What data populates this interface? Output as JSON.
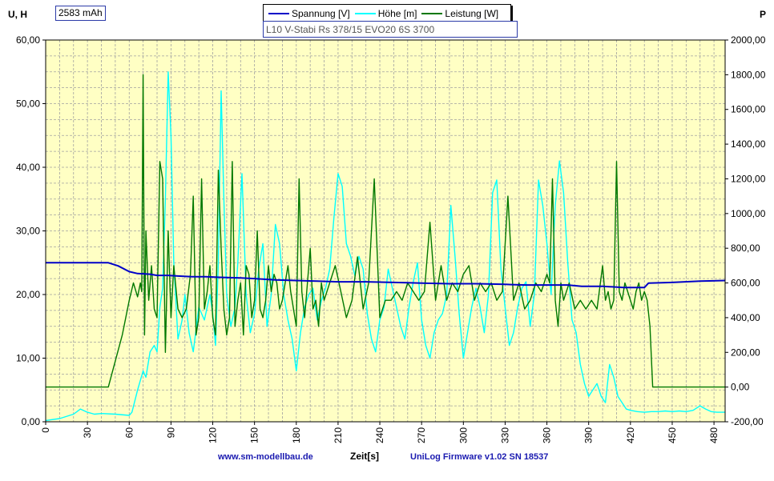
{
  "chart_data": {
    "type": "line",
    "title": "L10 V-Stabi Rs 378/15 EVO20 6S 3700",
    "capacity_label": "2583 mAh",
    "xlabel": "Zeit[s]",
    "ylabel_left": "U, H",
    "ylabel_right": "P",
    "xlim": [
      0,
      488
    ],
    "ylim_left": [
      0,
      60
    ],
    "ylim_right": [
      -200,
      2000
    ],
    "x_ticks": [
      "0",
      "30",
      "60",
      "90",
      "120",
      "150",
      "180",
      "210",
      "240",
      "270",
      "300",
      "330",
      "360",
      "390",
      "420",
      "450",
      "480"
    ],
    "y_left_ticks": [
      "0,00",
      "10,00",
      "20,00",
      "30,00",
      "40,00",
      "50,00",
      "60,00"
    ],
    "y_right_ticks": [
      "-200,00",
      "0,00",
      "200,00",
      "400,00",
      "600,00",
      "800,00",
      "1000,00",
      "1200,00",
      "1400,00",
      "1600,00",
      "1800,00",
      "2000,00"
    ],
    "grid": true,
    "legend_position": "top-center",
    "series": [
      {
        "name": "Spannung [V]",
        "axis": "left",
        "color": "#0000c8",
        "x": [
          0,
          45,
          52,
          60,
          66,
          75,
          80,
          88,
          95,
          105,
          115,
          125,
          140,
          150,
          165,
          180,
          195,
          210,
          230,
          250,
          270,
          290,
          310,
          330,
          345,
          360,
          375,
          385,
          400,
          415,
          430,
          433,
          450,
          470,
          488
        ],
        "y": [
          25.0,
          25.0,
          24.5,
          23.6,
          23.3,
          23.2,
          23.0,
          23.0,
          22.9,
          22.8,
          22.8,
          22.7,
          22.6,
          22.5,
          22.3,
          22.2,
          22.1,
          22.0,
          22.0,
          21.9,
          21.8,
          21.7,
          21.7,
          21.6,
          21.5,
          21.5,
          21.5,
          21.3,
          21.3,
          21.1,
          21.1,
          21.8,
          21.9,
          22.1,
          22.2
        ]
      },
      {
        "name": "Höhe [m]",
        "axis": "left",
        "color": "#00ffff",
        "x": [
          0,
          10,
          20,
          25,
          30,
          35,
          40,
          50,
          60,
          62,
          66,
          70,
          72,
          75,
          78,
          80,
          82,
          84,
          86,
          88,
          90,
          92,
          95,
          98,
          100,
          103,
          106,
          110,
          114,
          118,
          120,
          122,
          124,
          126,
          128,
          130,
          133,
          136,
          138,
          141,
          144,
          147,
          150,
          153,
          156,
          159,
          162,
          165,
          168,
          171,
          174,
          177,
          180,
          183,
          186,
          189,
          192,
          195,
          198,
          201,
          204,
          207,
          210,
          213,
          216,
          219,
          222,
          225,
          228,
          231,
          234,
          237,
          240,
          243,
          246,
          249,
          252,
          255,
          258,
          261,
          264,
          267,
          270,
          273,
          276,
          279,
          282,
          285,
          288,
          291,
          294,
          297,
          300,
          303,
          306,
          309,
          312,
          315,
          318,
          321,
          324,
          327,
          330,
          333,
          336,
          339,
          342,
          345,
          348,
          351,
          354,
          357,
          360,
          363,
          366,
          369,
          372,
          375,
          378,
          381,
          384,
          387,
          390,
          393,
          396,
          399,
          402,
          405,
          408,
          411,
          414,
          417,
          420,
          425,
          430,
          435,
          440,
          445,
          450,
          455,
          460,
          465,
          470,
          474,
          478,
          482,
          488
        ],
        "y": [
          0.2,
          0.5,
          1.2,
          2.0,
          1.5,
          1.2,
          1.3,
          1.2,
          1.0,
          1.5,
          5.0,
          8.0,
          7.0,
          11.0,
          12.0,
          11.0,
          18.0,
          21.0,
          35.0,
          55.0,
          45.0,
          25.0,
          13.0,
          16.0,
          20.0,
          14.0,
          11.0,
          18.0,
          16.0,
          20.0,
          17.0,
          12.0,
          25.0,
          52.0,
          35.0,
          20.0,
          15.0,
          18.0,
          25.0,
          39.0,
          20.0,
          14.0,
          17.0,
          24.0,
          28.0,
          15.0,
          20.0,
          31.0,
          28.0,
          20.0,
          16.0,
          13.0,
          8.0,
          14.0,
          18.0,
          20.0,
          21.0,
          16.0,
          19.0,
          21.0,
          24.0,
          32.0,
          39.0,
          37.0,
          28.0,
          26.0,
          23.0,
          26.0,
          24.0,
          17.0,
          13.0,
          11.0,
          16.0,
          18.0,
          24.0,
          21.0,
          18.0,
          15.0,
          13.0,
          18.0,
          22.0,
          25.0,
          16.0,
          12.0,
          10.0,
          14.0,
          16.0,
          17.0,
          20.0,
          34.0,
          26.0,
          17.0,
          10.0,
          14.0,
          18.0,
          21.0,
          18.0,
          14.0,
          20.0,
          36.0,
          38.0,
          24.0,
          18.0,
          12.0,
          14.0,
          18.0,
          21.0,
          22.0,
          15.0,
          20.0,
          38.0,
          34.0,
          28.0,
          20.0,
          34.0,
          41.0,
          36.0,
          25.0,
          16.0,
          14.0,
          9.0,
          6.0,
          4.0,
          5.0,
          6.0,
          4.0,
          3.0,
          9.0,
          7.0,
          4.0,
          3.0,
          2.0,
          1.8,
          1.6,
          1.5,
          1.6,
          1.6,
          1.7,
          1.6,
          1.7,
          1.6,
          1.8,
          2.5,
          2.0,
          1.6,
          1.5,
          1.5
        ]
      },
      {
        "name": "Leistung [W]",
        "axis": "right",
        "color": "#007800",
        "x": [
          0,
          45,
          50,
          55,
          60,
          63,
          66,
          68,
          69,
          70,
          71,
          72,
          74,
          76,
          78,
          80,
          82,
          84,
          86,
          88,
          90,
          92,
          95,
          98,
          101,
          104,
          106,
          108,
          110,
          112,
          114,
          116,
          118,
          120,
          122,
          124,
          126,
          128,
          130,
          132,
          134,
          136,
          138,
          140,
          142,
          144,
          146,
          148,
          150,
          152,
          154,
          156,
          158,
          160,
          162,
          164,
          166,
          168,
          170,
          172,
          174,
          176,
          178,
          180,
          182,
          184,
          186,
          188,
          190,
          192,
          194,
          196,
          198,
          200,
          204,
          208,
          212,
          216,
          220,
          224,
          228,
          232,
          236,
          240,
          244,
          248,
          252,
          256,
          260,
          264,
          268,
          272,
          276,
          280,
          284,
          288,
          292,
          296,
          300,
          304,
          308,
          312,
          316,
          320,
          324,
          328,
          332,
          336,
          340,
          344,
          348,
          352,
          356,
          360,
          362,
          364,
          366,
          368,
          370,
          372,
          376,
          380,
          384,
          388,
          392,
          396,
          400,
          402,
          404,
          406,
          408,
          410,
          412,
          414,
          416,
          418,
          420,
          422,
          424,
          426,
          428,
          430,
          432,
          434,
          436,
          440,
          460,
          488
        ],
        "y": [
          0,
          0,
          150,
          300,
          500,
          600,
          520,
          600,
          550,
          1800,
          300,
          900,
          500,
          700,
          450,
          400,
          1300,
          1200,
          200,
          900,
          400,
          700,
          450,
          400,
          450,
          650,
          1100,
          300,
          400,
          1200,
          450,
          550,
          700,
          400,
          300,
          1250,
          800,
          450,
          300,
          400,
          1300,
          350,
          500,
          600,
          300,
          700,
          650,
          400,
          500,
          900,
          450,
          400,
          500,
          700,
          550,
          650,
          600,
          450,
          500,
          600,
          700,
          550,
          450,
          350,
          1200,
          550,
          400,
          600,
          800,
          450,
          500,
          350,
          600,
          500,
          600,
          700,
          550,
          400,
          500,
          750,
          450,
          600,
          1200,
          400,
          500,
          500,
          550,
          500,
          600,
          550,
          500,
          550,
          950,
          500,
          700,
          500,
          600,
          550,
          650,
          700,
          500,
          600,
          550,
          600,
          500,
          550,
          1100,
          500,
          600,
          450,
          500,
          600,
          550,
          650,
          600,
          1200,
          500,
          350,
          600,
          500,
          600,
          450,
          500,
          450,
          500,
          450,
          700,
          500,
          550,
          450,
          500,
          1300,
          550,
          500,
          600,
          550,
          500,
          450,
          550,
          600,
          500,
          550,
          500,
          350,
          0,
          0,
          0,
          0
        ]
      }
    ]
  },
  "footer": {
    "website": "www.sm-modellbau.de",
    "firmware": "UniLog Firmware v1.02 SN 18537"
  }
}
